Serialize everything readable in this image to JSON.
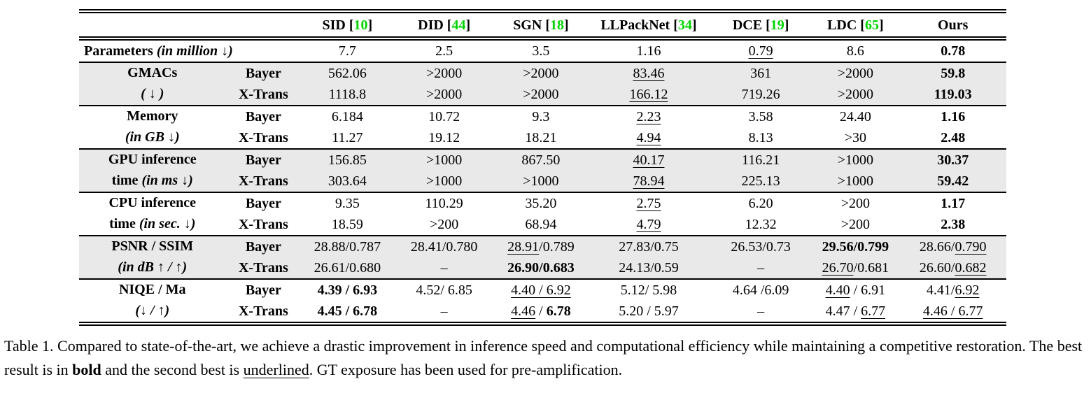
{
  "colors": {
    "citation_green": "#00d400",
    "row_band": "#e9e9e9",
    "text": "#000000",
    "background": "#ffffff"
  },
  "caption": {
    "segments": [
      {
        "t": "Table 1. Compared to state-of-the-art, we achieve a drastic improvement in inference speed and computational efficiency while maintaining a competitive restoration. The best result is in "
      },
      {
        "t": "bold",
        "b": 1
      },
      {
        "t": " and the second best is "
      },
      {
        "t": "underlined",
        "u": 1
      },
      {
        "t": ". GT exposure has been used for pre-amplification."
      }
    ]
  },
  "table": {
    "methods": [
      {
        "name": "SID",
        "cite": "10"
      },
      {
        "name": "DID",
        "cite": "44"
      },
      {
        "name": "SGN",
        "cite": "18"
      },
      {
        "name": "LLPackNet",
        "cite": "34"
      },
      {
        "name": "DCE",
        "cite": "19"
      },
      {
        "name": "LDC",
        "cite": "65"
      },
      {
        "name": "Ours",
        "cite": null
      }
    ],
    "groups": [
      {
        "id": "parameters",
        "shaded": false,
        "label_line1": [
          {
            "t": "Parameters ",
            "b": 1
          },
          {
            "t": "(in million ↓)",
            "b": 1,
            "i": 1
          }
        ],
        "label_line2": null,
        "rows": [
          {
            "sub": null,
            "cells": [
              [
                {
                  "t": "7.7"
                }
              ],
              [
                {
                  "t": "2.5"
                }
              ],
              [
                {
                  "t": "3.5"
                }
              ],
              [
                {
                  "t": "1.16"
                }
              ],
              [
                {
                  "t": "0.79",
                  "u": 1
                }
              ],
              [
                {
                  "t": "8.6"
                }
              ],
              [
                {
                  "t": "0.78",
                  "b": 1
                }
              ]
            ]
          }
        ]
      },
      {
        "id": "gmacs",
        "shaded": true,
        "label_line1": [
          {
            "t": "GMACs",
            "b": 1
          }
        ],
        "label_line2": [
          {
            "t": "( ↓ )",
            "b": 1,
            "i": 1
          }
        ],
        "rows": [
          {
            "sub": "Bayer",
            "cells": [
              [
                {
                  "t": "562.06"
                }
              ],
              [
                {
                  "t": ">2000"
                }
              ],
              [
                {
                  "t": ">2000"
                }
              ],
              [
                {
                  "t": "83.46",
                  "u": 1
                }
              ],
              [
                {
                  "t": "361"
                }
              ],
              [
                {
                  "t": ">2000"
                }
              ],
              [
                {
                  "t": "59.8",
                  "b": 1
                }
              ]
            ]
          },
          {
            "sub": "X-Trans",
            "cells": [
              [
                {
                  "t": "1118.8"
                }
              ],
              [
                {
                  "t": ">2000"
                }
              ],
              [
                {
                  "t": ">2000"
                }
              ],
              [
                {
                  "t": "166.12",
                  "u": 1
                }
              ],
              [
                {
                  "t": "719.26"
                }
              ],
              [
                {
                  "t": ">2000"
                }
              ],
              [
                {
                  "t": "119.03",
                  "b": 1
                }
              ]
            ]
          }
        ]
      },
      {
        "id": "memory",
        "shaded": false,
        "label_line1": [
          {
            "t": "Memory",
            "b": 1
          }
        ],
        "label_line2": [
          {
            "t": "(in GB ↓)",
            "b": 1,
            "i": 1
          }
        ],
        "rows": [
          {
            "sub": "Bayer",
            "cells": [
              [
                {
                  "t": "6.184"
                }
              ],
              [
                {
                  "t": "10.72"
                }
              ],
              [
                {
                  "t": "9.3"
                }
              ],
              [
                {
                  "t": "2.23",
                  "u": 1
                }
              ],
              [
                {
                  "t": "3.58"
                }
              ],
              [
                {
                  "t": "24.40"
                }
              ],
              [
                {
                  "t": "1.16",
                  "b": 1
                }
              ]
            ]
          },
          {
            "sub": "X-Trans",
            "cells": [
              [
                {
                  "t": "11.27"
                }
              ],
              [
                {
                  "t": "19.12"
                }
              ],
              [
                {
                  "t": "18.21"
                }
              ],
              [
                {
                  "t": "4.94",
                  "u": 1
                }
              ],
              [
                {
                  "t": "8.13"
                }
              ],
              [
                {
                  "t": ">30"
                }
              ],
              [
                {
                  "t": "2.48",
                  "b": 1
                }
              ]
            ]
          }
        ]
      },
      {
        "id": "gpu-inference-time",
        "shaded": true,
        "label_line1": [
          {
            "t": "GPU inference",
            "b": 1
          }
        ],
        "label_line2": [
          {
            "t": "time ",
            "b": 1
          },
          {
            "t": "(in ms ↓)",
            "b": 1,
            "i": 1
          }
        ],
        "rows": [
          {
            "sub": "Bayer",
            "cells": [
              [
                {
                  "t": "156.85"
                }
              ],
              [
                {
                  "t": ">1000"
                }
              ],
              [
                {
                  "t": "867.50"
                }
              ],
              [
                {
                  "t": "40.17",
                  "u": 1
                }
              ],
              [
                {
                  "t": "116.21"
                }
              ],
              [
                {
                  "t": ">1000"
                }
              ],
              [
                {
                  "t": "30.37",
                  "b": 1
                }
              ]
            ]
          },
          {
            "sub": "X-Trans",
            "cells": [
              [
                {
                  "t": "303.64"
                }
              ],
              [
                {
                  "t": ">1000"
                }
              ],
              [
                {
                  "t": ">1000"
                }
              ],
              [
                {
                  "t": "78.94",
                  "u": 1
                }
              ],
              [
                {
                  "t": "225.13"
                }
              ],
              [
                {
                  "t": ">1000"
                }
              ],
              [
                {
                  "t": "59.42",
                  "b": 1
                }
              ]
            ]
          }
        ]
      },
      {
        "id": "cpu-inference-time",
        "shaded": false,
        "label_line1": [
          {
            "t": "CPU inference",
            "b": 1
          }
        ],
        "label_line2": [
          {
            "t": "time ",
            "b": 1
          },
          {
            "t": "(in sec. ↓)",
            "b": 1,
            "i": 1
          }
        ],
        "rows": [
          {
            "sub": "Bayer",
            "cells": [
              [
                {
                  "t": "9.35"
                }
              ],
              [
                {
                  "t": "110.29"
                }
              ],
              [
                {
                  "t": "35.20"
                }
              ],
              [
                {
                  "t": "2.75",
                  "u": 1
                }
              ],
              [
                {
                  "t": "6.20"
                }
              ],
              [
                {
                  "t": ">200"
                }
              ],
              [
                {
                  "t": "1.17",
                  "b": 1
                }
              ]
            ]
          },
          {
            "sub": "X-Trans",
            "cells": [
              [
                {
                  "t": "18.59"
                }
              ],
              [
                {
                  "t": ">200"
                }
              ],
              [
                {
                  "t": "68.94"
                }
              ],
              [
                {
                  "t": "4.79",
                  "u": 1
                }
              ],
              [
                {
                  "t": "12.32"
                }
              ],
              [
                {
                  "t": ">200"
                }
              ],
              [
                {
                  "t": "2.38",
                  "b": 1
                }
              ]
            ]
          }
        ]
      },
      {
        "id": "psnr-ssim",
        "shaded": true,
        "label_line1": [
          {
            "t": "PSNR / SSIM",
            "b": 1
          }
        ],
        "label_line2": [
          {
            "t": "(in dB ↑ / ↑)",
            "b": 1,
            "i": 1
          }
        ],
        "rows": [
          {
            "sub": "Bayer",
            "cells": [
              [
                {
                  "t": "28.88/0.787"
                }
              ],
              [
                {
                  "t": "28.41/0.780"
                }
              ],
              [
                {
                  "t": "28.91",
                  "u": 1
                },
                {
                  "t": "/0.789"
                }
              ],
              [
                {
                  "t": "27.83/0.75"
                }
              ],
              [
                {
                  "t": "26.53/0.73"
                }
              ],
              [
                {
                  "t": "29.56/0.799",
                  "b": 1
                }
              ],
              [
                {
                  "t": "28.66/"
                },
                {
                  "t": "0.790",
                  "u": 1
                }
              ]
            ]
          },
          {
            "sub": "X-Trans",
            "cells": [
              [
                {
                  "t": "26.61/0.680"
                }
              ],
              [
                {
                  "t": "–"
                }
              ],
              [
                {
                  "t": "26.90/0.683",
                  "b": 1
                }
              ],
              [
                {
                  "t": "24.13/0.59"
                }
              ],
              [
                {
                  "t": "–"
                }
              ],
              [
                {
                  "t": "26.70",
                  "u": 1
                },
                {
                  "t": "/0.681"
                }
              ],
              [
                {
                  "t": "26.60/"
                },
                {
                  "t": "0.682",
                  "u": 1
                }
              ]
            ]
          }
        ]
      },
      {
        "id": "niqe-ma",
        "shaded": false,
        "label_line1": [
          {
            "t": "NIQE / Ma",
            "b": 1
          }
        ],
        "label_line2": [
          {
            "t": "(↓ / ↑)",
            "b": 1,
            "i": 1
          }
        ],
        "rows": [
          {
            "sub": "Bayer",
            "cells": [
              [
                {
                  "t": "4.39 / 6.93",
                  "b": 1
                }
              ],
              [
                {
                  "t": "4.52/ 6.85"
                }
              ],
              [
                {
                  "t": "4.40 / 6.92",
                  "u": 1
                }
              ],
              [
                {
                  "t": "5.12/ 5.98"
                }
              ],
              [
                {
                  "t": "4.64 /6.09"
                }
              ],
              [
                {
                  "t": "4.40",
                  "u": 1
                },
                {
                  "t": " / 6.91"
                }
              ],
              [
                {
                  "t": "4.41/"
                },
                {
                  "t": "6.92",
                  "u": 1
                }
              ]
            ]
          },
          {
            "sub": "X-Trans",
            "cells": [
              [
                {
                  "t": "4.45 / 6.78",
                  "b": 1
                }
              ],
              [
                {
                  "t": "–"
                }
              ],
              [
                {
                  "t": "4.46",
                  "u": 1
                },
                {
                  "t": " / "
                },
                {
                  "t": "6.78",
                  "b": 1
                }
              ],
              [
                {
                  "t": "5.20 / 5.97"
                }
              ],
              [
                {
                  "t": "–"
                }
              ],
              [
                {
                  "t": "4.47 / "
                },
                {
                  "t": "6.77",
                  "u": 1
                }
              ],
              [
                {
                  "t": "4.46 / 6.77",
                  "u": 1
                }
              ]
            ]
          }
        ]
      }
    ]
  }
}
